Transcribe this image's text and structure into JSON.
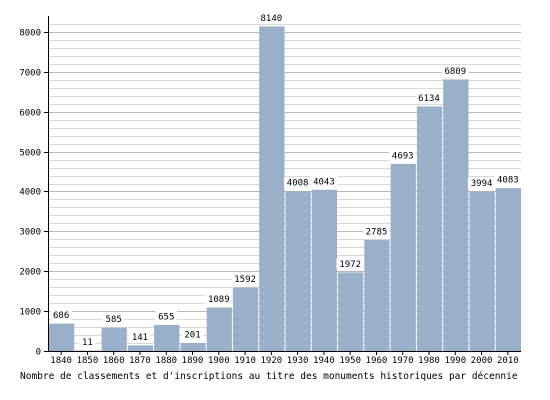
{
  "chart_data": {
    "type": "bar",
    "categories": [
      "1840",
      "1850",
      "1860",
      "1870",
      "1880",
      "1890",
      "1900",
      "1910",
      "1920",
      "1930",
      "1940",
      "1950",
      "1960",
      "1970",
      "1980",
      "1990",
      "2000",
      "2010"
    ],
    "values": [
      686,
      11,
      585,
      141,
      655,
      201,
      1089,
      1592,
      8140,
      4008,
      4043,
      1972,
      2785,
      4693,
      6134,
      6809,
      3994,
      4083
    ],
    "title": "",
    "caption": "Nombre de classements et d'inscriptions au titre des monuments historiques par décennie",
    "xlabel": "",
    "ylabel": "",
    "ylim": [
      0,
      8300
    ],
    "yticks": [
      0,
      1000,
      2000,
      3000,
      4000,
      5000,
      6000,
      7000,
      8000
    ],
    "grid": true,
    "bar_color": "#9ab0c8",
    "grid_color": "#d8d8d8",
    "legend": "none"
  }
}
